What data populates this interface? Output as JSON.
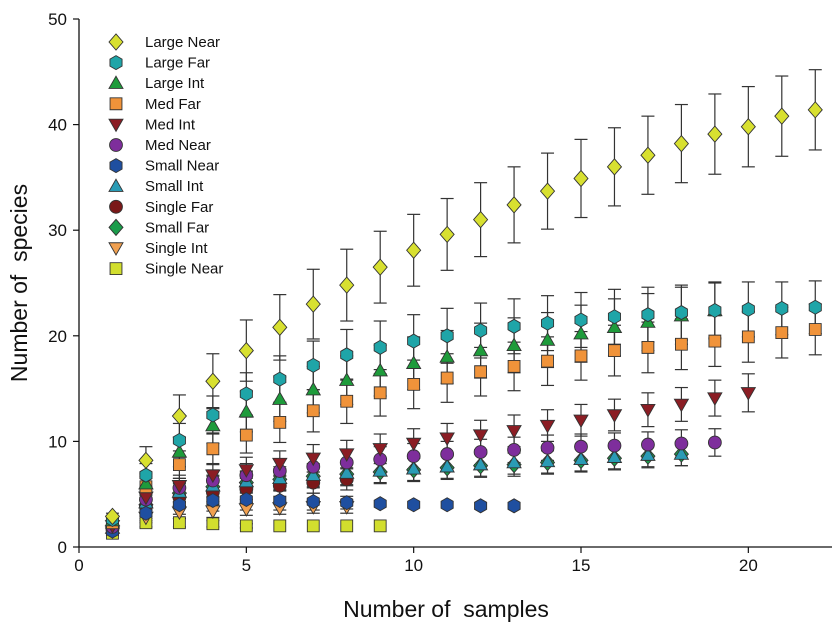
{
  "chart_data": {
    "type": "scatter",
    "xlabel": "Number of  samples",
    "ylabel": "Number of  species",
    "xlim": [
      0,
      22.5
    ],
    "ylim": [
      0,
      50
    ],
    "xticks": [
      0,
      5,
      10,
      15,
      20
    ],
    "yticks": [
      0,
      10,
      20,
      30,
      40,
      50
    ],
    "grid": false,
    "legend_position": "top-left",
    "series": [
      {
        "name": "Large Near",
        "marker": "diamond",
        "color": "#d8e030",
        "x": [
          1,
          2,
          3,
          4,
          5,
          6,
          7,
          8,
          9,
          10,
          11,
          12,
          13,
          14,
          15,
          16,
          17,
          18,
          19,
          20,
          21,
          22
        ],
        "y": [
          2.9,
          8.2,
          12.4,
          15.7,
          18.6,
          20.8,
          23.0,
          24.8,
          26.5,
          28.1,
          29.6,
          31.0,
          32.4,
          33.7,
          34.9,
          36.0,
          37.1,
          38.2,
          39.1,
          39.8,
          40.8,
          41.4
        ],
        "err": [
          0.3,
          1.3,
          2.0,
          2.6,
          2.9,
          3.1,
          3.3,
          3.4,
          3.4,
          3.4,
          3.4,
          3.5,
          3.6,
          3.6,
          3.7,
          3.7,
          3.7,
          3.7,
          3.8,
          3.8,
          3.8,
          3.8
        ]
      },
      {
        "name": "Large Far",
        "marker": "hexagon",
        "color": "#1fa5a8",
        "x": [
          1,
          2,
          3,
          4,
          5,
          6,
          7,
          8,
          9,
          10,
          11,
          12,
          13,
          14,
          15,
          16,
          17,
          18,
          19,
          20,
          21,
          22
        ],
        "y": [
          2.6,
          6.8,
          10.1,
          12.5,
          14.5,
          15.9,
          17.2,
          18.2,
          18.9,
          19.5,
          20.0,
          20.5,
          20.9,
          21.2,
          21.5,
          21.8,
          22.0,
          22.2,
          22.4,
          22.5,
          22.6,
          22.7
        ],
        "err": [
          0.3,
          1.1,
          1.6,
          1.8,
          2.0,
          2.2,
          2.3,
          2.4,
          2.5,
          2.5,
          2.6,
          2.6,
          2.6,
          2.6,
          2.6,
          2.6,
          2.6,
          2.6,
          2.6,
          2.6,
          2.5,
          2.5
        ]
      },
      {
        "name": "Large Int",
        "marker": "triangle-up",
        "color": "#1e9b3b",
        "x": [
          1,
          2,
          3,
          4,
          5,
          6,
          7,
          8,
          9,
          10,
          11,
          12,
          13,
          14,
          15,
          16,
          17,
          18,
          19
        ],
        "y": [
          2.5,
          6.0,
          9.0,
          11.5,
          12.8,
          14.0,
          14.9,
          15.8,
          16.7,
          17.4,
          18.0,
          18.6,
          19.1,
          19.6,
          20.2,
          20.8,
          21.3,
          21.9,
          22.4
        ],
        "err": [
          0.3,
          1.0,
          1.4,
          1.7,
          1.9,
          2.1,
          2.2,
          2.3,
          2.4,
          2.5,
          2.5,
          2.6,
          2.6,
          2.6,
          2.7,
          2.7,
          2.7,
          2.7,
          2.7
        ]
      },
      {
        "name": "Med Far",
        "marker": "square",
        "color": "#f0933a",
        "x": [
          1,
          2,
          3,
          4,
          5,
          6,
          7,
          8,
          9,
          10,
          11,
          12,
          13,
          14,
          15,
          16,
          17,
          18,
          19,
          20,
          21,
          22
        ],
        "y": [
          2.3,
          5.7,
          7.8,
          9.3,
          10.6,
          11.8,
          12.9,
          13.8,
          14.6,
          15.4,
          16.0,
          16.6,
          17.1,
          17.6,
          18.1,
          18.6,
          18.9,
          19.2,
          19.5,
          19.9,
          20.3,
          20.6
        ],
        "err": [
          0.3,
          1.0,
          1.3,
          1.5,
          1.7,
          1.9,
          2.0,
          2.1,
          2.2,
          2.3,
          2.3,
          2.3,
          2.3,
          2.3,
          2.3,
          2.4,
          2.4,
          2.4,
          2.4,
          2.4,
          2.4,
          2.4
        ]
      },
      {
        "name": "Med Int",
        "marker": "triangle-down",
        "color": "#8b1d24",
        "x": [
          1,
          2,
          3,
          4,
          5,
          6,
          7,
          8,
          9,
          10,
          11,
          12,
          13,
          14,
          15,
          16,
          17,
          18,
          19,
          20
        ],
        "y": [
          2.0,
          4.7,
          5.8,
          6.8,
          7.3,
          7.9,
          8.4,
          8.8,
          9.3,
          9.8,
          10.3,
          10.6,
          11.0,
          11.5,
          12.0,
          12.5,
          13.0,
          13.5,
          14.1,
          14.6
        ],
        "err": [
          0.3,
          0.8,
          1.0,
          1.1,
          1.2,
          1.2,
          1.3,
          1.3,
          1.4,
          1.4,
          1.4,
          1.4,
          1.5,
          1.5,
          1.5,
          1.5,
          1.6,
          1.6,
          1.7,
          1.8
        ]
      },
      {
        "name": "Med Near",
        "marker": "circle",
        "color": "#7e2e9c",
        "x": [
          1,
          2,
          3,
          4,
          5,
          6,
          7,
          8,
          9,
          10,
          11,
          12,
          13,
          14,
          15,
          16,
          17,
          18,
          19
        ],
        "y": [
          1.9,
          4.5,
          5.6,
          6.3,
          6.8,
          7.2,
          7.6,
          8.0,
          8.3,
          8.6,
          8.8,
          9.0,
          9.2,
          9.4,
          9.5,
          9.6,
          9.7,
          9.8,
          9.9
        ],
        "err": [
          0.3,
          0.8,
          0.9,
          1.0,
          1.1,
          1.1,
          1.2,
          1.2,
          1.2,
          1.2,
          1.2,
          1.2,
          1.2,
          1.2,
          1.2,
          1.2,
          1.2,
          1.3,
          1.3
        ]
      },
      {
        "name": "Small Near",
        "marker": "hexagon",
        "color": "#1f4fa0",
        "x": [
          1,
          2,
          3,
          4,
          5,
          6,
          7,
          8,
          9,
          10,
          11,
          12,
          13
        ],
        "y": [
          1.5,
          3.2,
          4.0,
          4.4,
          4.5,
          4.4,
          4.3,
          4.2,
          4.1,
          4.0,
          4.0,
          3.9,
          3.9
        ],
        "err": [
          0.2,
          0.7,
          0.9,
          1.0,
          1.0,
          0.9,
          0.8,
          0.6,
          0,
          0,
          0,
          0,
          0
        ]
      },
      {
        "name": "Small Int",
        "marker": "triangle-up",
        "color": "#2a9bb5",
        "x": [
          1,
          2,
          3,
          4,
          5,
          6,
          7,
          8,
          9,
          10,
          11,
          12,
          13,
          14,
          15,
          16,
          17,
          18
        ],
        "y": [
          1.8,
          4.2,
          5.2,
          5.8,
          6.2,
          6.5,
          6.8,
          7.0,
          7.2,
          7.4,
          7.6,
          7.8,
          8.0,
          8.1,
          8.3,
          8.5,
          8.7,
          8.8
        ],
        "err": [
          0.3,
          0.7,
          0.9,
          1.0,
          1.0,
          1.1,
          1.1,
          1.1,
          1.1,
          1.1,
          1.1,
          1.1,
          1.1,
          1.1,
          1.1,
          1.1,
          1.1,
          1.1
        ]
      },
      {
        "name": "Single Far",
        "marker": "circle",
        "color": "#7a1818",
        "x": [
          1,
          2,
          3,
          4,
          5,
          6,
          7,
          8
        ],
        "y": [
          1.7,
          3.8,
          4.7,
          5.2,
          5.5,
          5.8,
          6.1,
          6.4
        ],
        "err": [
          0.3,
          0.6,
          0.8,
          0.9,
          1.0,
          1.0,
          1.0,
          1.0
        ]
      },
      {
        "name": "Small Far",
        "marker": "diamond",
        "color": "#1a9c4a",
        "x": [
          1,
          2,
          3,
          4,
          5,
          6,
          7,
          8,
          9,
          10,
          11,
          12,
          13,
          14,
          15,
          16,
          17,
          18
        ],
        "y": [
          1.8,
          4.0,
          5.1,
          5.7,
          6.1,
          6.4,
          6.7,
          6.9,
          7.1,
          7.3,
          7.5,
          7.7,
          7.8,
          8.0,
          8.2,
          8.4,
          8.6,
          8.8
        ],
        "err": [
          0.3,
          0.7,
          0.9,
          1.0,
          1.0,
          1.0,
          1.1,
          1.1,
          1.1,
          1.1,
          1.1,
          1.1,
          1.1,
          1.1,
          1.1,
          1.1,
          1.1,
          1.1
        ]
      },
      {
        "name": "Single Int",
        "marker": "triangle-down",
        "color": "#f0a050",
        "x": [
          1,
          2,
          3,
          4,
          5,
          6,
          7,
          8
        ],
        "y": [
          1.5,
          2.8,
          3.3,
          3.4,
          3.6,
          3.7,
          3.8,
          3.8
        ],
        "err": [
          0.2,
          0.5,
          0.6,
          0.6,
          0.6,
          0.6,
          0.6,
          0.6
        ]
      },
      {
        "name": "Single Near",
        "marker": "square",
        "color": "#d2de2e",
        "x": [
          1,
          2,
          3,
          4,
          5,
          6,
          7,
          8,
          9
        ],
        "y": [
          1.3,
          2.3,
          2.3,
          2.2,
          2.0,
          2.0,
          2.0,
          2.0,
          2.0
        ],
        "err": [
          0.2,
          0.4,
          0.4,
          0.3,
          0.2,
          0,
          0,
          0,
          0
        ]
      }
    ]
  }
}
